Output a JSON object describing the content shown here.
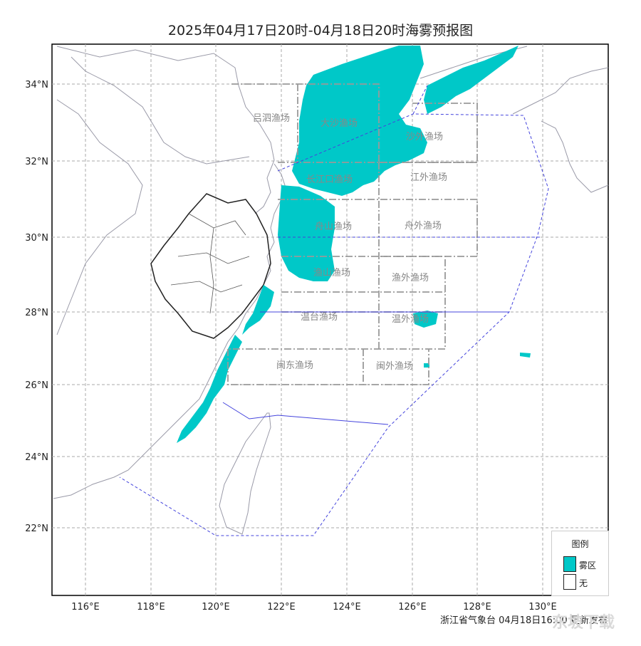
{
  "title": "2025年04月17日20时-04月18日20时海雾预报图",
  "lon_labels": [
    "116°E",
    "118°E",
    "120°E",
    "122°E",
    "124°E",
    "126°E",
    "128°E",
    "130°E"
  ],
  "lat_labels": [
    "34°N",
    "32°N",
    "30°N",
    "28°N",
    "26°N",
    "24°N",
    "22°N"
  ],
  "zones": [
    {
      "label": "吕泗渔场"
    },
    {
      "label": "大沙渔场"
    },
    {
      "label": "沙外渔场"
    },
    {
      "label": "长江口渔场"
    },
    {
      "label": "江外渔场"
    },
    {
      "label": "舟山渔场"
    },
    {
      "label": "舟外渔场"
    },
    {
      "label": "渔山渔场"
    },
    {
      "label": "渔外渔场"
    },
    {
      "label": "温台渔场"
    },
    {
      "label": "温外渔场"
    },
    {
      "label": "闽东渔场"
    },
    {
      "label": "闽外渔场"
    }
  ],
  "legend": {
    "title": "图例",
    "items": [
      {
        "label": "雾区",
        "color": "#00c8c8"
      },
      {
        "label": "无",
        "color": "#ffffff"
      }
    ]
  },
  "footer": "浙江省气象台 04月18日16:00 更新发布",
  "watermark": "东坡下载",
  "fog_color": "#00c8c8"
}
